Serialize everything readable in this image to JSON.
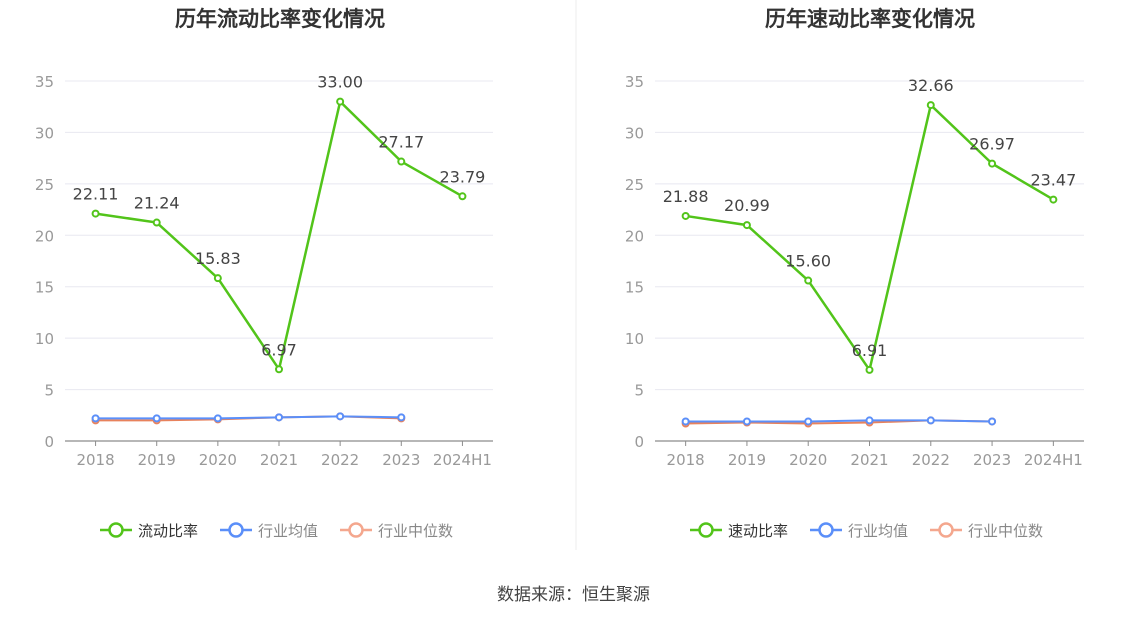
{
  "source_label": "数据来源：恒生聚源",
  "colors": {
    "main": "#52c41a",
    "avg": "#5b8ff9",
    "median": "#f4a78e",
    "median_line": "#e8825c",
    "grid": "#e8e8f0",
    "axis": "#999999",
    "divider": "#eeeeee"
  },
  "chart_data": [
    {
      "type": "line",
      "title": "历年流动比率变化情况",
      "categories": [
        "2018",
        "2019",
        "2020",
        "2021",
        "2022",
        "2023",
        "2024H1"
      ],
      "ylim": [
        0,
        35
      ],
      "yticks": [
        0,
        5,
        10,
        15,
        20,
        25,
        30,
        35
      ],
      "grid": true,
      "legend_position": "bottom-center",
      "series": [
        {
          "name": "流动比率",
          "key": "main",
          "values": [
            22.11,
            21.24,
            15.83,
            6.97,
            33.0,
            27.17,
            23.79
          ],
          "labels": [
            "22.11",
            "21.24",
            "15.83",
            "6.97",
            "33.00",
            "27.17",
            "23.79"
          ]
        },
        {
          "name": "行业均值",
          "key": "avg",
          "values": [
            2.2,
            2.2,
            2.2,
            2.3,
            2.4,
            2.3,
            null
          ]
        },
        {
          "name": "行业中位数",
          "key": "median",
          "values": [
            2.0,
            2.0,
            2.1,
            2.3,
            2.4,
            2.2,
            null
          ]
        }
      ]
    },
    {
      "type": "line",
      "title": "历年速动比率变化情况",
      "categories": [
        "2018",
        "2019",
        "2020",
        "2021",
        "2022",
        "2023",
        "2024H1"
      ],
      "ylim": [
        0,
        35
      ],
      "yticks": [
        0,
        5,
        10,
        15,
        20,
        25,
        30,
        35
      ],
      "grid": true,
      "legend_position": "bottom-center",
      "series": [
        {
          "name": "速动比率",
          "key": "main",
          "values": [
            21.88,
            20.99,
            15.6,
            6.91,
            32.66,
            26.97,
            23.47
          ],
          "labels": [
            "21.88",
            "20.99",
            "15.60",
            "6.91",
            "32.66",
            "26.97",
            "23.47"
          ]
        },
        {
          "name": "行业均值",
          "key": "avg",
          "values": [
            1.9,
            1.9,
            1.9,
            2.0,
            2.0,
            1.9,
            null
          ]
        },
        {
          "name": "行业中位数",
          "key": "median",
          "values": [
            1.7,
            1.8,
            1.7,
            1.8,
            2.0,
            1.9,
            null
          ]
        }
      ]
    }
  ]
}
